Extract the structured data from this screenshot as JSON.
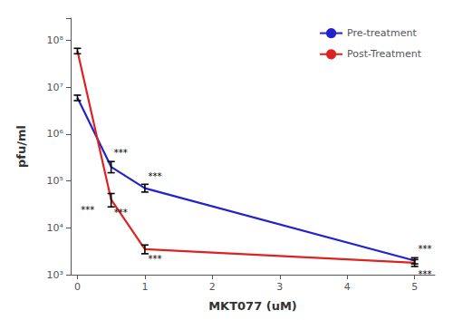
{
  "chart_data": {
    "type": "line",
    "xlabel": "MKT077 (uM)",
    "ylabel": "pfu/ml",
    "x": [
      0,
      0.5,
      1,
      5
    ],
    "series": [
      {
        "name": "Pre-treatment",
        "color": "#2222CC",
        "values": [
          6000000,
          200000,
          70000,
          2000
        ],
        "error_low": [
          800000,
          50000,
          12000,
          300
        ],
        "error_high": [
          800000,
          60000,
          15000,
          300
        ]
      },
      {
        "name": "Post-Treatment",
        "color": "#DD2222",
        "values": [
          60000000,
          40000,
          3500,
          1800
        ],
        "error_low": [
          8000000,
          12000,
          700,
          300
        ],
        "error_high": [
          8000000,
          14000,
          800,
          300
        ]
      }
    ],
    "log": "y",
    "xlim": [
      -0.1,
      5.3
    ],
    "ylim": [
      1000,
      300000000
    ],
    "xticks": [
      0,
      1,
      2,
      3,
      4,
      5
    ],
    "yticks": [
      {
        "value": 1000,
        "label": "10³"
      },
      {
        "value": 10000,
        "label": "10⁴"
      },
      {
        "value": 100000,
        "label": "10⁵"
      },
      {
        "value": 1000000,
        "label": "10⁶"
      },
      {
        "value": 10000000,
        "label": "10⁷"
      },
      {
        "value": 100000000,
        "label": "10⁸"
      }
    ],
    "grid": false,
    "legend": "upper right",
    "annotations": [
      {
        "text": "***",
        "x": 0.05,
        "y": 30000
      },
      {
        "text": "***",
        "x": 0.54,
        "y": 320000
      },
      {
        "text": "***",
        "x": 0.54,
        "y": 26000
      },
      {
        "text": "***",
        "x": 1.05,
        "y": 100000
      },
      {
        "text": "***",
        "x": 1.05,
        "y": 2700
      },
      {
        "text": "***",
        "x": 5.05,
        "y": 2800
      },
      {
        "text": "***",
        "x": 5.05,
        "y": 1300
      }
    ]
  }
}
